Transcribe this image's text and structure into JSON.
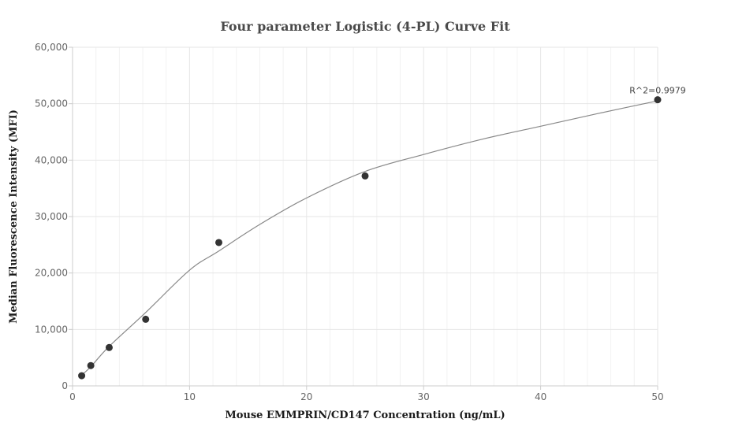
{
  "chart_data": {
    "type": "scatter",
    "title": "Four parameter Logistic (4-PL) Curve Fit",
    "xlabel": "Mouse EMMPRIN/CD147 Concentration (ng/mL)",
    "ylabel": "Median Fluorescence Intensity (MFI)",
    "xlim": [
      0,
      50
    ],
    "ylim": [
      0,
      60000
    ],
    "x_ticks": [
      0,
      10,
      20,
      30,
      40,
      50
    ],
    "x_tick_labels": [
      "0",
      "10",
      "20",
      "30",
      "40",
      "50"
    ],
    "y_ticks": [
      0,
      10000,
      20000,
      30000,
      40000,
      50000,
      60000
    ],
    "y_tick_labels": [
      "0",
      "10,000",
      "20,000",
      "30,000",
      "40,000",
      "50,000",
      "60,000"
    ],
    "grid": true,
    "series": [
      {
        "type": "scatter",
        "x": [
          0.78,
          1.56,
          3.13,
          6.25,
          12.5,
          25,
          50
        ],
        "y": [
          1800,
          3600,
          6800,
          11800,
          25400,
          37200,
          50700
        ],
        "color": "#333333"
      },
      {
        "type": "line",
        "x": [
          0.78,
          1.56,
          3.13,
          6.25,
          10,
          12.5,
          16,
          20,
          25,
          30,
          35,
          40,
          45,
          50
        ],
        "y": [
          1900,
          3400,
          7000,
          13000,
          20500,
          23900,
          28600,
          33300,
          38000,
          41000,
          43700,
          46000,
          48300,
          50500
        ],
        "color": "#888888"
      }
    ],
    "annotations": [
      {
        "text": "R^2=0.9979",
        "x": 50,
        "y": 50700
      }
    ],
    "gridline_color": "#e6e6e6"
  }
}
